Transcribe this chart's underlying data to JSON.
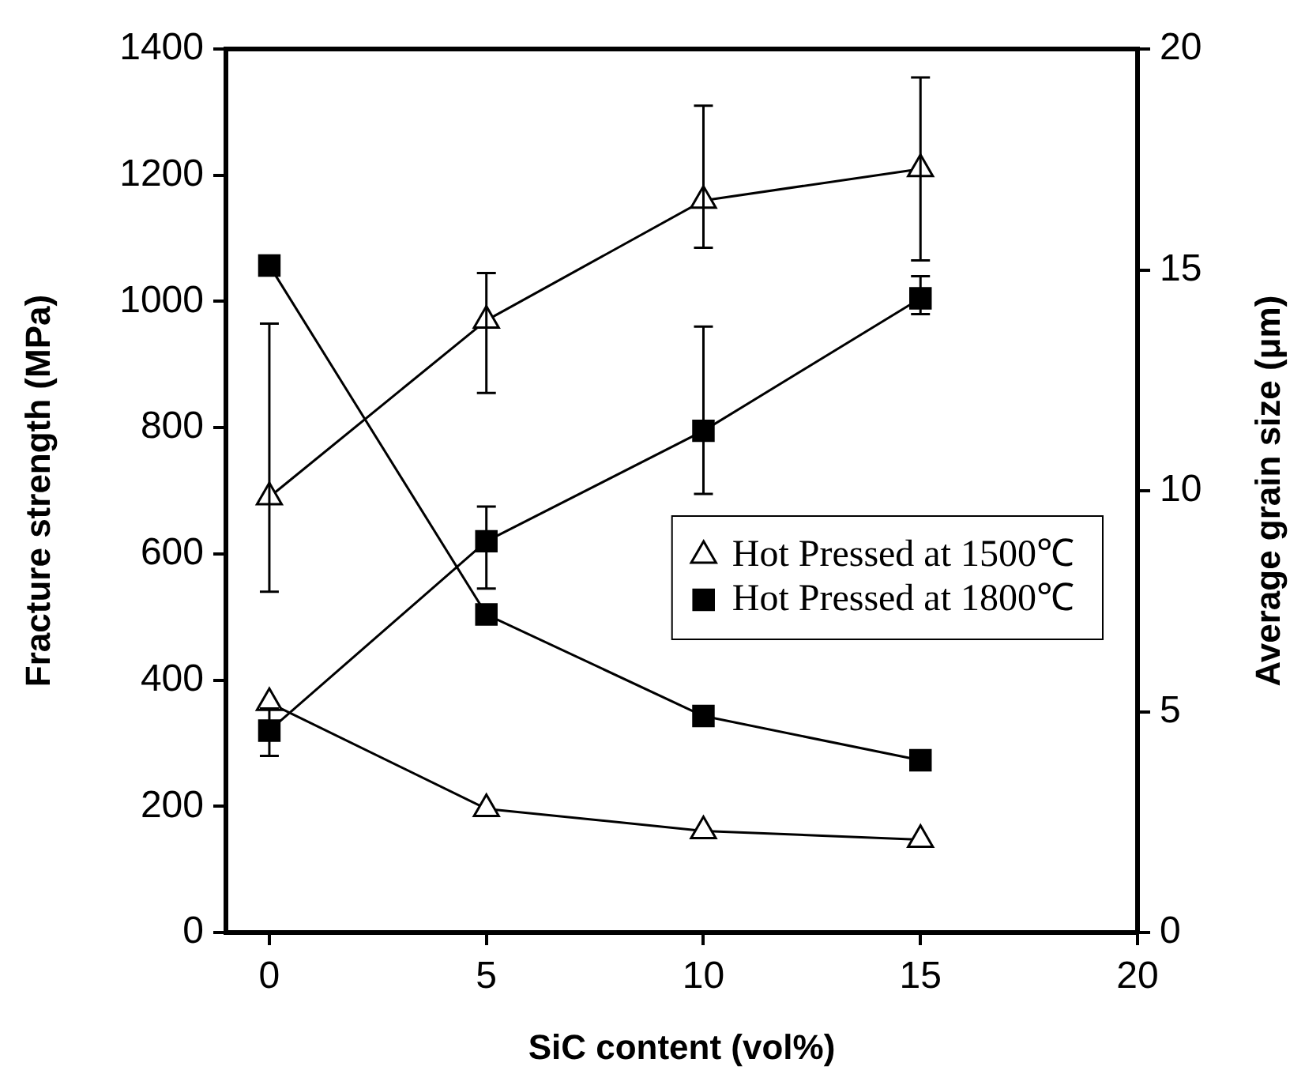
{
  "chart_data": {
    "type": "line",
    "xlabel": "SiC content (vol%)",
    "ylabel": "Fracture strength (MPa)",
    "y2label": "Average grain size (μm)",
    "x": [
      0,
      5,
      10,
      15
    ],
    "series": [
      {
        "name": "Hot Pressed at 1500℃",
        "color": "#000000",
        "marker": "triangle",
        "values": [
          690,
          970,
          1160,
          1210
        ],
        "errors": [
          [
            540,
            965
          ],
          [
            855,
            1045
          ],
          [
            1085,
            1310
          ],
          [
            1065,
            1355
          ]
        ]
      },
      {
        "name": "Hot Pressed at 1800℃",
        "color": "#000000",
        "marker": "square",
        "values": [
          320,
          620,
          795,
          1005
        ],
        "errors": [
          [
            280,
            355
          ],
          [
            545,
            675
          ],
          [
            695,
            960
          ],
          [
            980,
            1040
          ]
        ]
      },
      {
        "color": "#000000",
        "marker": "triangle",
        "axis": "y2",
        "values": [
          5.2,
          2.8,
          2.3,
          2.1
        ]
      },
      {
        "color": "#000000",
        "marker": "square",
        "axis": "y2",
        "values": [
          15.1,
          7.2,
          4.9,
          3.9
        ]
      }
    ],
    "xlim": [
      -1,
      20
    ],
    "xticks": [
      0,
      5,
      10,
      15,
      20
    ],
    "ylim": [
      0,
      1400
    ],
    "yticks": [
      0,
      200,
      400,
      600,
      800,
      1000,
      1200,
      1400
    ],
    "y2lim": [
      0,
      20
    ],
    "y2ticks": [
      0,
      5,
      10,
      15,
      20
    ],
    "grid": false,
    "legend": "right"
  }
}
